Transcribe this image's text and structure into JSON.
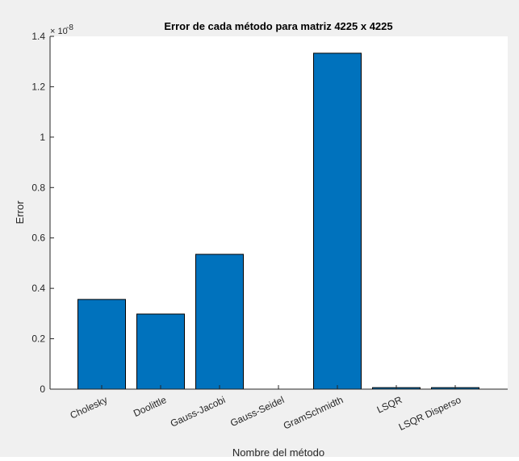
{
  "chart_data": {
    "type": "bar",
    "title": "Error de cada método para matriz 4225 x 4225",
    "xlabel": "Nombre del método",
    "ylabel": "Error",
    "y_exponent_base": "× 10",
    "y_exponent": "-8",
    "categories": [
      "Cholesky",
      "Doolittle",
      "Gauss-Jacobi",
      "Gauss-Seidel",
      "GramSchmidth",
      "LSQR",
      "LSQR Disperso"
    ],
    "values": [
      0.356,
      0.298,
      0.535,
      0.0,
      1.333,
      0.006,
      0.006
    ],
    "ylim": [
      0,
      1.4
    ],
    "yticks": [
      0,
      0.2,
      0.4,
      0.6,
      0.8,
      1,
      1.2,
      1.4
    ],
    "ytick_labels": [
      "0",
      "0.2",
      "0.4",
      "0.6",
      "0.8",
      "1",
      "1.2",
      "1.4"
    ],
    "bar_color": "#0072bd",
    "grid": false,
    "legend": "none"
  }
}
